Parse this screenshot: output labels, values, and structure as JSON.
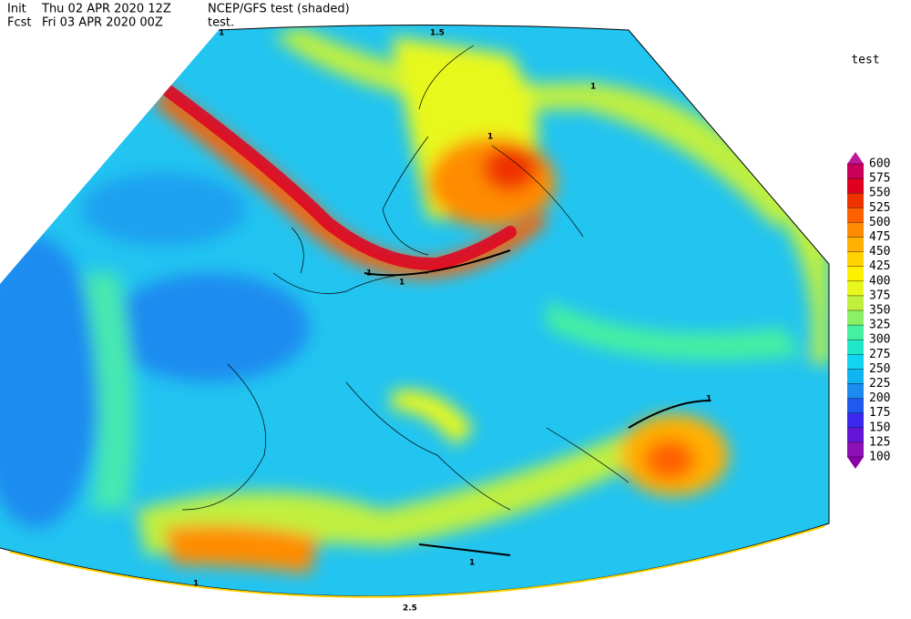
{
  "header": {
    "init_label": "Init",
    "init_time": "Thu 02 APR 2020 12Z",
    "fcst_label": "Fcst",
    "fcst_time": "Fri 03 APR 2020 00Z",
    "model": "NCEP/GFS test (shaded)",
    "contours": "test."
  },
  "colorbar": {
    "title": "test",
    "levels": [
      100,
      125,
      150,
      175,
      200,
      225,
      250,
      275,
      300,
      325,
      350,
      375,
      400,
      425,
      450,
      475,
      500,
      525,
      550,
      575,
      600
    ],
    "colors": [
      "#8c10b4",
      "#6414d8",
      "#3c28ec",
      "#1e5af0",
      "#1c8cf0",
      "#10b4f0",
      "#10d4f0",
      "#1ee8c8",
      "#46f0a0",
      "#8cf064",
      "#c0f03c",
      "#e8f81e",
      "#fff000",
      "#ffd200",
      "#ffb000",
      "#ff8c00",
      "#ff6000",
      "#f03200",
      "#e00020",
      "#c8005a"
    ],
    "extend_colors": [
      "#8a00a8",
      "#c0189c"
    ]
  },
  "contour_labels": [
    "1",
    "1.5",
    "1",
    "1",
    "1",
    "1",
    "1",
    "1",
    "1",
    "2.5"
  ]
}
